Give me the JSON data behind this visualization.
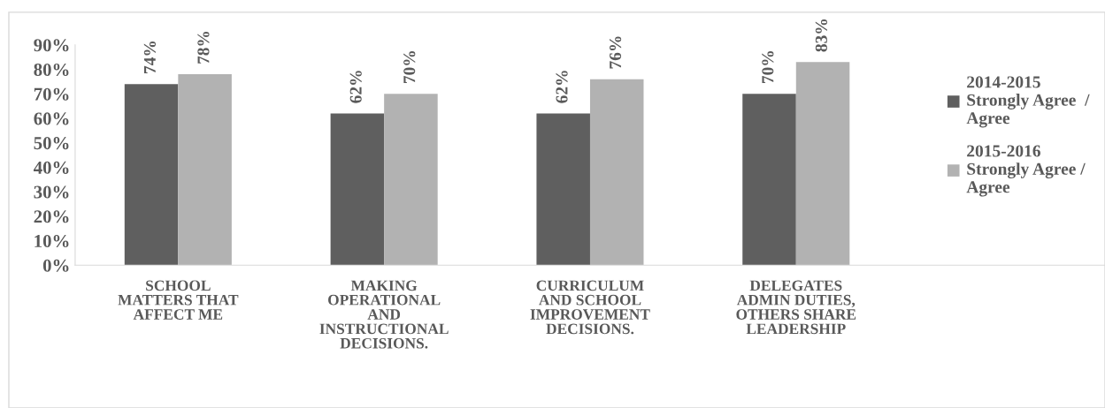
{
  "chart_data": {
    "type": "bar",
    "categories": [
      "SCHOOL\nMATTERS THAT\nAFFECT ME",
      "MAKING\nOPERATIONAL\nAND\nINSTRUCTIONAL\nDECISIONS.",
      "CURRICULUM\nAND SCHOOL\nIMPROVEMENT\nDECISIONS.",
      "DELEGATES\nADMIN DUTIES,\nOTHERS SHARE\nLEADERSHIP"
    ],
    "series": [
      {
        "name": "2014-2015\nStrongly Agree  /\nAgree",
        "color": "#5f5f5f",
        "values": [
          74,
          62,
          62,
          70
        ],
        "value_labels": [
          "74%",
          "62%",
          "62%",
          "70%"
        ]
      },
      {
        "name": "2015-2016\nStrongly Agree /\nAgree",
        "color": "#b2b2b2",
        "values": [
          78,
          70,
          76,
          83
        ],
        "value_labels": [
          "78%",
          "70%",
          "76%",
          "83%"
        ]
      }
    ],
    "ylim": [
      0,
      90
    ],
    "yticks": [
      {
        "value": 0,
        "label": "0%"
      },
      {
        "value": 10,
        "label": "10%"
      },
      {
        "value": 20,
        "label": "20%"
      },
      {
        "value": 30,
        "label": "30%"
      },
      {
        "value": 40,
        "label": "40%"
      },
      {
        "value": 50,
        "label": "50%"
      },
      {
        "value": 60,
        "label": "60%"
      },
      {
        "value": 70,
        "label": "70%"
      },
      {
        "value": 80,
        "label": "80%"
      },
      {
        "value": 90,
        "label": "90%"
      }
    ],
    "grid": false,
    "legend": "right"
  }
}
